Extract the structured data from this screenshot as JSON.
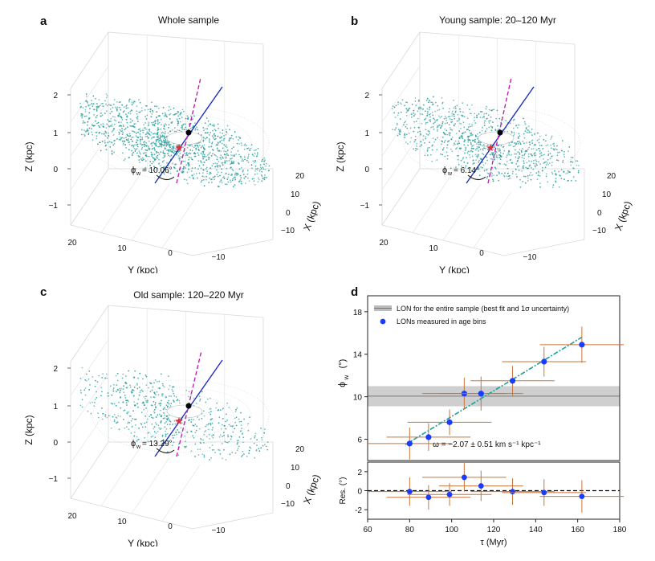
{
  "chart_data": [
    {
      "type": "scatter",
      "panel": "a",
      "title": "Whole sample",
      "xlabel": "Y (kpc)",
      "ylabel": "Z (kpc)",
      "zlabel": "X (kpc)",
      "y_ticks": [
        "20",
        "10",
        "0",
        "−10"
      ],
      "x_ticks": [
        "20",
        "10",
        "0",
        "−10"
      ],
      "z_ticks": [
        "2",
        "1",
        "0",
        "−1"
      ],
      "annotation": "= 10.06°",
      "phi_w_deg": 10.06,
      "colors": {
        "stars": "#2a9d9a",
        "lon": "#1f2fbf",
        "fit": "#c020b0",
        "sun": "#e03040"
      }
    },
    {
      "type": "scatter",
      "panel": "b",
      "title": "Young sample: 20–120 Myr",
      "xlabel": "Y (kpc)",
      "ylabel": "Z (kpc)",
      "zlabel": "X (kpc)",
      "y_ticks": [
        "20",
        "10",
        "0",
        "−10"
      ],
      "x_ticks": [
        "20",
        "10",
        "0",
        "−10"
      ],
      "z_ticks": [
        "2",
        "1",
        "0",
        "−1"
      ],
      "annotation": "= 6.14°",
      "phi_w_deg": 6.14
    },
    {
      "type": "scatter",
      "panel": "c",
      "title": "Old sample: 120–220 Myr",
      "xlabel": "Y (kpc)",
      "ylabel": "Z (kpc)",
      "zlabel": "X (kpc)",
      "y_ticks": [
        "20",
        "10",
        "0",
        "−10"
      ],
      "x_ticks": [
        "20",
        "10",
        "0",
        "−10"
      ],
      "z_ticks": [
        "2",
        "1",
        "0",
        "−1"
      ],
      "annotation": "= 13.29°",
      "phi_w_deg": 13.29
    },
    {
      "type": "scatter",
      "panel": "d",
      "ylabel": "(°)",
      "res_ylabel": "Res. (°)",
      "xlabel": "τ (Myr)",
      "xlim": [
        60,
        180
      ],
      "ylim": [
        4,
        19.5
      ],
      "res_ylim": [
        -3,
        3
      ],
      "x_ticks": [
        60,
        80,
        100,
        120,
        140,
        160,
        180
      ],
      "y_ticks": [
        6,
        10,
        14,
        18
      ],
      "res_ticks": [
        2,
        0,
        -2
      ],
      "legend": [
        "LON for the entire sample (best fit and 1σ uncertainty)",
        "LONs measured in age bins"
      ],
      "legend_position": "top-left",
      "annotation": "ω = −2.07 ± 0.51 km s⁻¹ kpc⁻¹",
      "lon_entire": {
        "value": 10.06,
        "lower": 9.1,
        "upper": 11.0
      },
      "fit_line": {
        "x": [
          78,
          162
        ],
        "y": [
          5.5,
          15.6
        ]
      },
      "points": [
        {
          "x": 80,
          "xerr": 20,
          "y": 5.6,
          "yerr": 1.5,
          "res": -0.1,
          "res_err": 1.5
        },
        {
          "x": 89,
          "xerr": 20,
          "y": 6.2,
          "yerr": 1.3,
          "res": -0.7,
          "res_err": 1.3
        },
        {
          "x": 99,
          "xerr": 20,
          "y": 7.6,
          "yerr": 1.2,
          "res": -0.4,
          "res_err": 1.2
        },
        {
          "x": 106,
          "xerr": 20,
          "y": 10.3,
          "yerr": 1.5,
          "res": 1.4,
          "res_err": 1.5
        },
        {
          "x": 114,
          "xerr": 20,
          "y": 10.3,
          "yerr": 1.6,
          "res": 0.5,
          "res_err": 1.6
        },
        {
          "x": 129,
          "xerr": 20,
          "y": 11.5,
          "yerr": 1.4,
          "res": -0.1,
          "res_err": 1.4
        },
        {
          "x": 144,
          "xerr": 20,
          "y": 13.3,
          "yerr": 1.4,
          "res": -0.2,
          "res_err": 1.4
        },
        {
          "x": 162,
          "xerr": 20,
          "y": 14.9,
          "yerr": 1.7,
          "res": -0.6,
          "res_err": 1.7
        }
      ],
      "colors": {
        "points": "#1a3cff",
        "errbar": "#c8743a",
        "fit": "#1aa0a0",
        "band": "#cccccc",
        "zero": "#000000"
      }
    }
  ],
  "panel_letters": [
    "a",
    "b",
    "c",
    "d"
  ]
}
